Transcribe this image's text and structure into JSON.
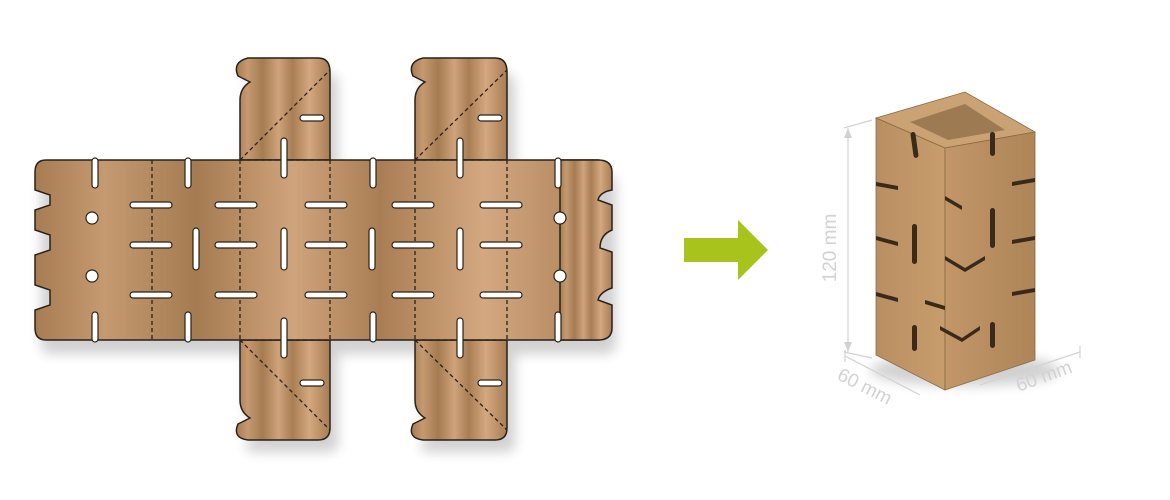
{
  "colors": {
    "cardboard_light": "#d0a279",
    "cardboard_dark": "#a77c52",
    "outline": "#2a2118",
    "arrow": "#a8c41c",
    "dimension": "#d2d2d2"
  },
  "dimensions": {
    "height": "120 mm",
    "width_left": "60 mm",
    "width_right": "60 mm"
  },
  "icons": {
    "arrow": "arrow-right-icon"
  }
}
